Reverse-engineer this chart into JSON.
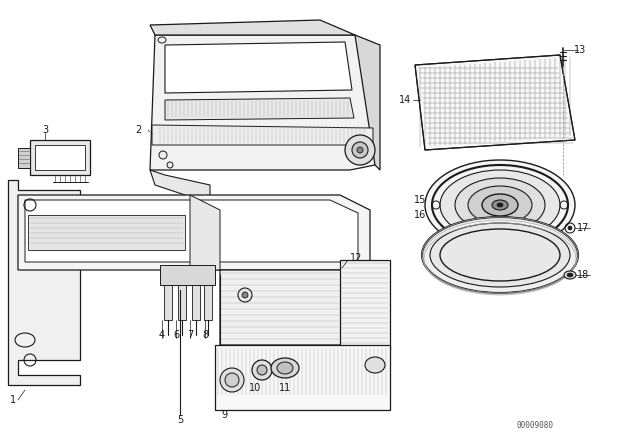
{
  "bg_color": "#ffffff",
  "line_color": "#1a1a1a",
  "gray_light": "#d8d8d8",
  "gray_med": "#aaaaaa",
  "gray_dark": "#888888",
  "part_number": "00009080",
  "fig_w": 6.4,
  "fig_h": 4.48,
  "dpi": 100
}
